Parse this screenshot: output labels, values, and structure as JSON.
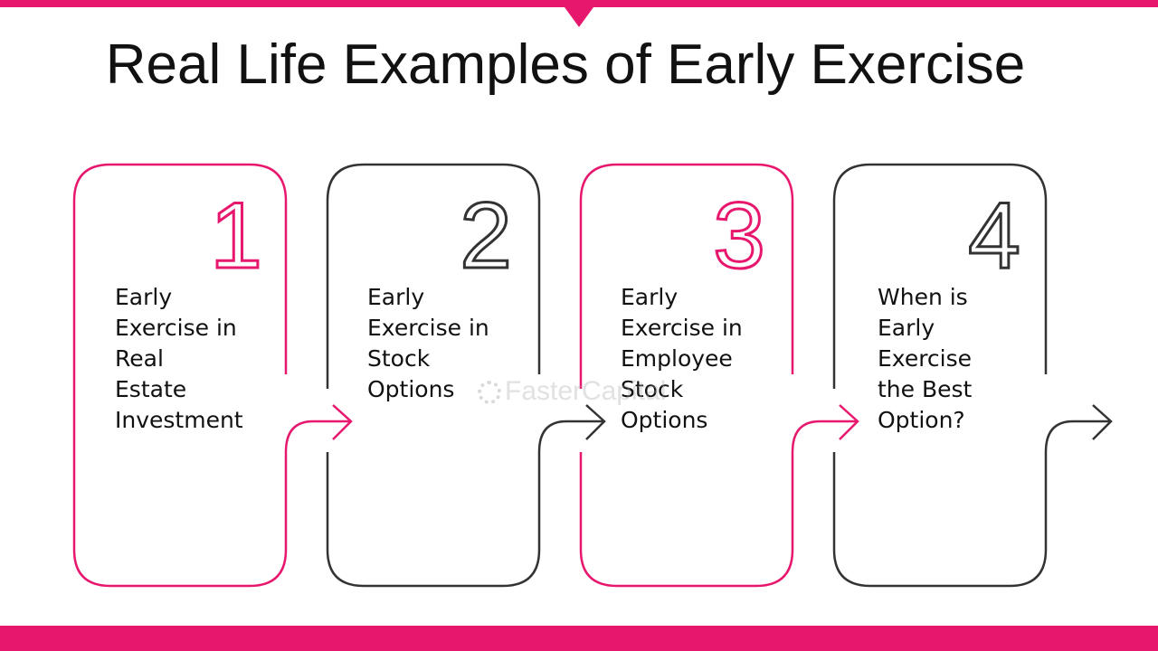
{
  "title": "Real Life Examples of Early Exercise",
  "colors": {
    "accent": "#e8176e",
    "dark": "#333333"
  },
  "steps": [
    {
      "number": "1",
      "text": "Early\nExercise in\nReal\nEstate\nInvestment",
      "color": "#e8176e"
    },
    {
      "number": "2",
      "text": "Early\nExercise in\nStock\nOptions",
      "color": "#333333"
    },
    {
      "number": "3",
      "text": "Early\nExercise in\nEmployee\nStock\nOptions",
      "color": "#e8176e"
    },
    {
      "number": "4",
      "text": "When is\nEarly\nExercise\nthe Best\nOption?",
      "color": "#333333"
    }
  ],
  "watermark": "FasterCapital"
}
